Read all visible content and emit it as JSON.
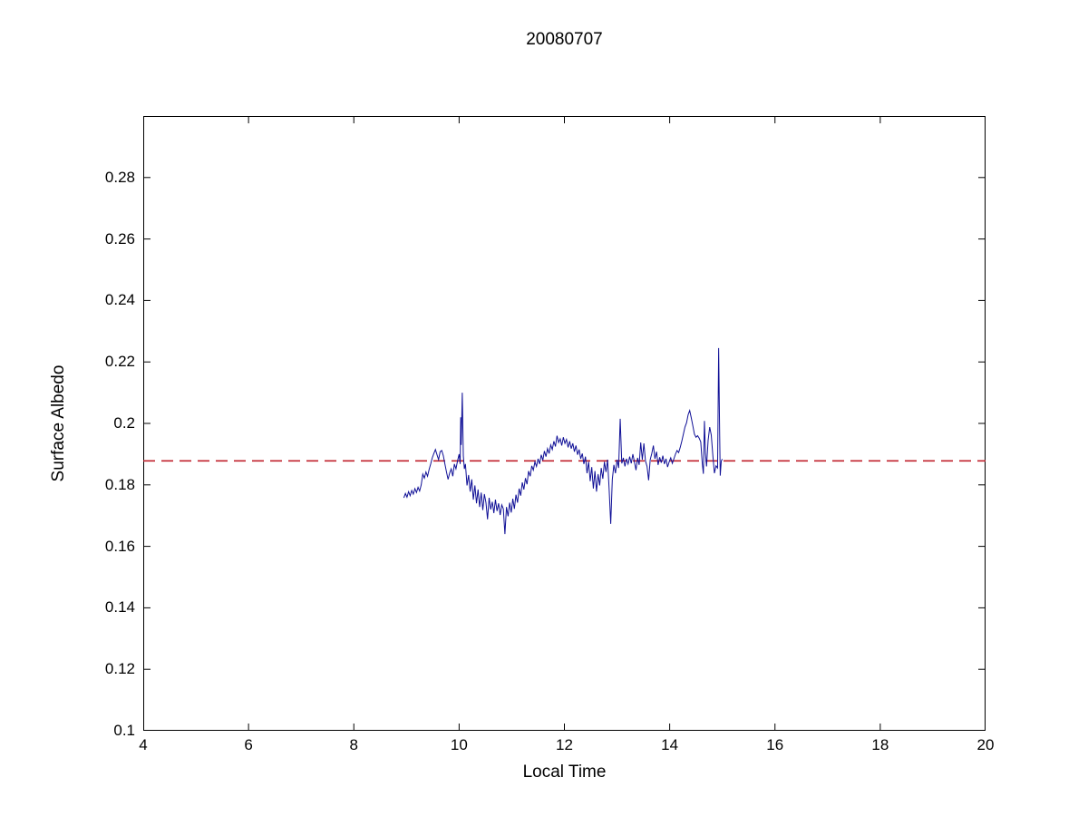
{
  "figure": {
    "title": "20080707",
    "xlabel": "Local Time",
    "ylabel": "Surface Albedo"
  },
  "colors": {
    "axis": "#000000",
    "data_line": "#0f0f96",
    "reference_line": "#c0202c",
    "background": "#ffffff"
  },
  "chart_data": {
    "type": "line",
    "title": "20080707",
    "xlabel": "Local Time",
    "ylabel": "Surface Albedo",
    "xlim": [
      4,
      20
    ],
    "ylim": [
      0.1,
      0.3
    ],
    "grid": false,
    "legend": "none",
    "x_ticks": [
      4,
      6,
      8,
      10,
      12,
      14,
      16,
      18,
      20
    ],
    "x_tick_labels": [
      "4",
      "6",
      "8",
      "10",
      "12",
      "14",
      "16",
      "18",
      "20"
    ],
    "y_ticks": [
      0.1,
      0.12,
      0.14,
      0.16,
      0.18,
      0.2,
      0.22,
      0.24,
      0.26,
      0.28
    ],
    "y_tick_labels": [
      "0.1",
      "0.12",
      "0.14",
      "0.16",
      "0.18",
      "0.2",
      "0.22",
      "0.24",
      "0.26",
      "0.28"
    ],
    "reference_line": {
      "name": "mean-albedo-reference",
      "y": 0.1878,
      "style": "dashed",
      "color": "#c0202c"
    },
    "series": [
      {
        "name": "surface-albedo",
        "color": "#0f0f96",
        "style": "solid",
        "points": [
          [
            8.95,
            0.1758
          ],
          [
            8.98,
            0.1772
          ],
          [
            9.01,
            0.176
          ],
          [
            9.04,
            0.1778
          ],
          [
            9.07,
            0.1765
          ],
          [
            9.1,
            0.1782
          ],
          [
            9.13,
            0.177
          ],
          [
            9.16,
            0.1788
          ],
          [
            9.19,
            0.1775
          ],
          [
            9.22,
            0.1792
          ],
          [
            9.25,
            0.178
          ],
          [
            9.28,
            0.18
          ],
          [
            9.31,
            0.1835
          ],
          [
            9.34,
            0.1822
          ],
          [
            9.37,
            0.1842
          ],
          [
            9.4,
            0.1828
          ],
          [
            9.43,
            0.185
          ],
          [
            9.46,
            0.1868
          ],
          [
            9.49,
            0.1888
          ],
          [
            9.52,
            0.1902
          ],
          [
            9.55,
            0.1915
          ],
          [
            9.58,
            0.1898
          ],
          [
            9.61,
            0.1882
          ],
          [
            9.64,
            0.1908
          ],
          [
            9.67,
            0.1912
          ],
          [
            9.7,
            0.1895
          ],
          [
            9.73,
            0.1868
          ],
          [
            9.76,
            0.1842
          ],
          [
            9.79,
            0.1818
          ],
          [
            9.82,
            0.1838
          ],
          [
            9.85,
            0.1852
          ],
          [
            9.88,
            0.1828
          ],
          [
            9.91,
            0.1868
          ],
          [
            9.94,
            0.1852
          ],
          [
            9.97,
            0.1878
          ],
          [
            10.0,
            0.19
          ],
          [
            10.02,
            0.1868
          ],
          [
            10.03,
            0.202
          ],
          [
            10.04,
            0.193
          ],
          [
            10.06,
            0.21
          ],
          [
            10.08,
            0.1895
          ],
          [
            10.1,
            0.1852
          ],
          [
            10.12,
            0.1868
          ],
          [
            10.15,
            0.1798
          ],
          [
            10.18,
            0.1832
          ],
          [
            10.21,
            0.1778
          ],
          [
            10.24,
            0.1818
          ],
          [
            10.27,
            0.1752
          ],
          [
            10.3,
            0.1798
          ],
          [
            10.33,
            0.174
          ],
          [
            10.36,
            0.1785
          ],
          [
            10.39,
            0.1728
          ],
          [
            10.42,
            0.1775
          ],
          [
            10.45,
            0.1718
          ],
          [
            10.48,
            0.177
          ],
          [
            10.51,
            0.1742
          ],
          [
            10.54,
            0.1688
          ],
          [
            10.57,
            0.1758
          ],
          [
            10.6,
            0.172
          ],
          [
            10.63,
            0.1745
          ],
          [
            10.66,
            0.1708
          ],
          [
            10.69,
            0.1752
          ],
          [
            10.72,
            0.1715
          ],
          [
            10.75,
            0.174
          ],
          [
            10.78,
            0.1702
          ],
          [
            10.81,
            0.1735
          ],
          [
            10.84,
            0.1722
          ],
          [
            10.87,
            0.164
          ],
          [
            10.9,
            0.1728
          ],
          [
            10.93,
            0.1698
          ],
          [
            10.96,
            0.1742
          ],
          [
            10.99,
            0.171
          ],
          [
            11.02,
            0.1755
          ],
          [
            11.05,
            0.1722
          ],
          [
            11.08,
            0.1768
          ],
          [
            11.11,
            0.1742
          ],
          [
            11.14,
            0.1788
          ],
          [
            11.17,
            0.1765
          ],
          [
            11.2,
            0.1808
          ],
          [
            11.23,
            0.1785
          ],
          [
            11.26,
            0.1822
          ],
          [
            11.29,
            0.1802
          ],
          [
            11.32,
            0.1845
          ],
          [
            11.35,
            0.1828
          ],
          [
            11.38,
            0.1862
          ],
          [
            11.41,
            0.1848
          ],
          [
            11.44,
            0.1875
          ],
          [
            11.47,
            0.186
          ],
          [
            11.5,
            0.1885
          ],
          [
            11.53,
            0.1868
          ],
          [
            11.56,
            0.1898
          ],
          [
            11.59,
            0.188
          ],
          [
            11.62,
            0.191
          ],
          [
            11.65,
            0.1892
          ],
          [
            11.68,
            0.1918
          ],
          [
            11.71,
            0.1902
          ],
          [
            11.74,
            0.193
          ],
          [
            11.77,
            0.1915
          ],
          [
            11.8,
            0.1942
          ],
          [
            11.83,
            0.1925
          ],
          [
            11.86,
            0.196
          ],
          [
            11.89,
            0.1938
          ],
          [
            11.92,
            0.195
          ],
          [
            11.95,
            0.1928
          ],
          [
            11.98,
            0.1955
          ],
          [
            12.01,
            0.1935
          ],
          [
            12.04,
            0.1948
          ],
          [
            12.07,
            0.1922
          ],
          [
            12.1,
            0.1942
          ],
          [
            12.13,
            0.1918
          ],
          [
            12.16,
            0.1935
          ],
          [
            12.19,
            0.1908
          ],
          [
            12.22,
            0.1928
          ],
          [
            12.25,
            0.1898
          ],
          [
            12.28,
            0.1915
          ],
          [
            12.31,
            0.1885
          ],
          [
            12.34,
            0.1902
          ],
          [
            12.37,
            0.1868
          ],
          [
            12.4,
            0.1892
          ],
          [
            12.43,
            0.1838
          ],
          [
            12.46,
            0.1875
          ],
          [
            12.49,
            0.1812
          ],
          [
            12.52,
            0.1858
          ],
          [
            12.55,
            0.1788
          ],
          [
            12.58,
            0.1845
          ],
          [
            12.61,
            0.1778
          ],
          [
            12.64,
            0.1835
          ],
          [
            12.67,
            0.1798
          ],
          [
            12.7,
            0.1855
          ],
          [
            12.73,
            0.182
          ],
          [
            12.76,
            0.1875
          ],
          [
            12.79,
            0.1842
          ],
          [
            12.82,
            0.1882
          ],
          [
            12.85,
            0.1785
          ],
          [
            12.88,
            0.1673
          ],
          [
            12.91,
            0.1818
          ],
          [
            12.94,
            0.1865
          ],
          [
            12.97,
            0.1838
          ],
          [
            13.0,
            0.1882
          ],
          [
            13.03,
            0.1855
          ],
          [
            13.06,
            0.2015
          ],
          [
            13.09,
            0.187
          ],
          [
            13.12,
            0.1888
          ],
          [
            13.15,
            0.186
          ],
          [
            13.18,
            0.1885
          ],
          [
            13.21,
            0.1868
          ],
          [
            13.24,
            0.1892
          ],
          [
            13.27,
            0.187
          ],
          [
            13.3,
            0.19
          ],
          [
            13.33,
            0.1875
          ],
          [
            13.36,
            0.1848
          ],
          [
            13.39,
            0.1888
          ],
          [
            13.42,
            0.1865
          ],
          [
            13.45,
            0.1938
          ],
          [
            13.48,
            0.1882
          ],
          [
            13.51,
            0.1935
          ],
          [
            13.54,
            0.1878
          ],
          [
            13.57,
            0.186
          ],
          [
            13.6,
            0.1815
          ],
          [
            13.63,
            0.1882
          ],
          [
            13.66,
            0.1902
          ],
          [
            13.69,
            0.1928
          ],
          [
            13.72,
            0.1885
          ],
          [
            13.75,
            0.1908
          ],
          [
            13.78,
            0.1865
          ],
          [
            13.81,
            0.189
          ],
          [
            13.84,
            0.1872
          ],
          [
            13.87,
            0.1895
          ],
          [
            13.9,
            0.1868
          ],
          [
            13.93,
            0.1885
          ],
          [
            13.96,
            0.1858
          ],
          [
            13.99,
            0.1875
          ],
          [
            14.02,
            0.1888
          ],
          [
            14.05,
            0.187
          ],
          [
            14.08,
            0.1885
          ],
          [
            14.11,
            0.19
          ],
          [
            14.14,
            0.1912
          ],
          [
            14.17,
            0.1905
          ],
          [
            14.2,
            0.1922
          ],
          [
            14.23,
            0.1942
          ],
          [
            14.26,
            0.1965
          ],
          [
            14.29,
            0.1988
          ],
          [
            14.32,
            0.2002
          ],
          [
            14.35,
            0.2028
          ],
          [
            14.38,
            0.2042
          ],
          [
            14.41,
            0.2018
          ],
          [
            14.44,
            0.1992
          ],
          [
            14.47,
            0.1965
          ],
          [
            14.5,
            0.1955
          ],
          [
            14.53,
            0.196
          ],
          [
            14.56,
            0.1952
          ],
          [
            14.59,
            0.194
          ],
          [
            14.62,
            0.1868
          ],
          [
            14.64,
            0.1836
          ],
          [
            14.66,
            0.2008
          ],
          [
            14.68,
            0.1902
          ],
          [
            14.7,
            0.186
          ],
          [
            14.73,
            0.1945
          ],
          [
            14.76,
            0.1988
          ],
          [
            14.79,
            0.1962
          ],
          [
            14.82,
            0.1895
          ],
          [
            14.85,
            0.1838
          ],
          [
            14.88,
            0.1862
          ],
          [
            14.91,
            0.1855
          ],
          [
            14.93,
            0.2245
          ],
          [
            14.95,
            0.1958
          ],
          [
            14.96,
            0.183
          ],
          [
            14.98,
            0.1878
          ],
          [
            15.0,
            0.1884
          ]
        ]
      }
    ]
  }
}
